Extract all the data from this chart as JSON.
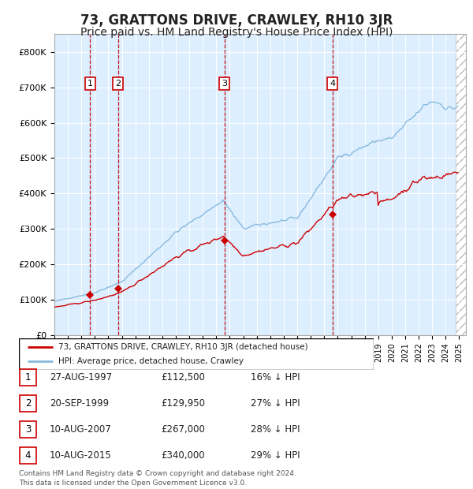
{
  "title": "73, GRATTONS DRIVE, CRAWLEY, RH10 3JR",
  "subtitle": "Price paid vs. HM Land Registry's House Price Index (HPI)",
  "title_fontsize": 12,
  "subtitle_fontsize": 10,
  "background_color": "#ffffff",
  "plot_bg_color": "#ddeeff",
  "ylim": [
    0,
    850000
  ],
  "yticks": [
    0,
    100000,
    200000,
    300000,
    400000,
    500000,
    600000,
    700000,
    800000
  ],
  "ytick_labels": [
    "£0",
    "£100K",
    "£200K",
    "£300K",
    "£400K",
    "£500K",
    "£600K",
    "£700K",
    "£800K"
  ],
  "hpi_color": "#88bbdd",
  "price_color": "#cc0000",
  "marker_color": "#cc0000",
  "sales": [
    {
      "label": "1",
      "date_num": 1997.65,
      "price": 112500
    },
    {
      "label": "2",
      "date_num": 1999.72,
      "price": 129950
    },
    {
      "label": "3",
      "date_num": 2007.6,
      "price": 267000
    },
    {
      "label": "4",
      "date_num": 2015.6,
      "price": 340000
    }
  ],
  "legend_line1": "73, GRATTONS DRIVE, CRAWLEY, RH10 3JR (detached house)",
  "legend_line2": "HPI: Average price, detached house, Crawley",
  "footnote": "Contains HM Land Registry data © Crown copyright and database right 2024.\nThis data is licensed under the Open Government Licence v3.0.",
  "table_rows": [
    [
      "1",
      "27-AUG-1997",
      "£112,500",
      "16% ↓ HPI"
    ],
    [
      "2",
      "20-SEP-1999",
      "£129,950",
      "27% ↓ HPI"
    ],
    [
      "3",
      "10-AUG-2007",
      "£267,000",
      "28% ↓ HPI"
    ],
    [
      "4",
      "10-AUG-2015",
      "£340,000",
      "29% ↓ HPI"
    ]
  ]
}
